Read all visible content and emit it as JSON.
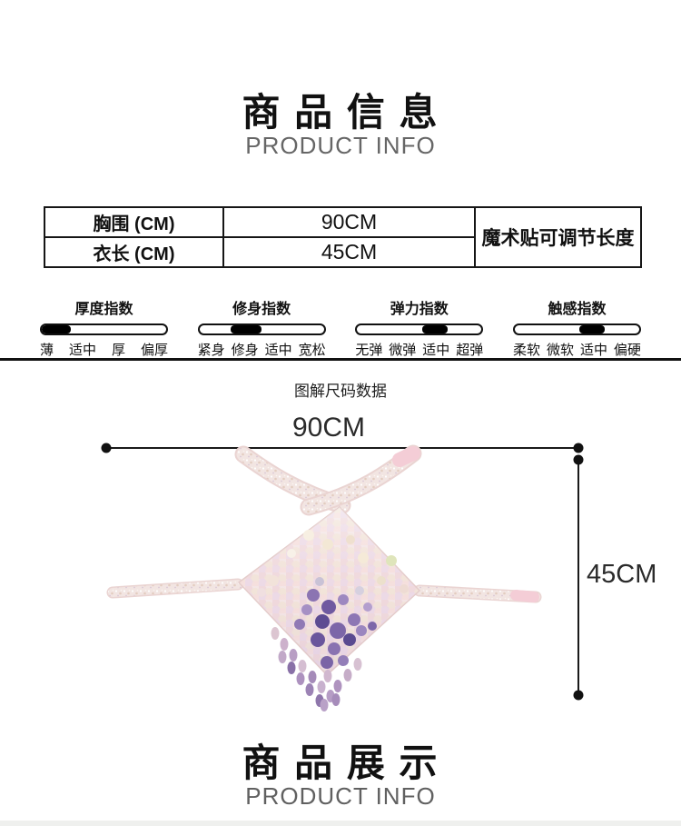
{
  "page": {
    "header": {
      "title": "商 品 信 息",
      "subtitle": "PRODUCT INFO"
    },
    "size_table": {
      "rows": [
        {
          "label": "胸围 (CM)",
          "value": "90CM"
        },
        {
          "label": "衣长 (CM)",
          "value": "45CM"
        }
      ],
      "note": "魔术贴可调节长度"
    },
    "indices": [
      {
        "title": "厚度指数",
        "labels": [
          "薄",
          "适中",
          "厚",
          "偏厚"
        ],
        "fill_start_pct": 0,
        "fill_end_pct": 23
      },
      {
        "title": "修身指数",
        "labels": [
          "紧身",
          "修身",
          "适中",
          "宽松"
        ],
        "fill_start_pct": 25,
        "fill_end_pct": 50
      },
      {
        "title": "弹力指数",
        "labels": [
          "无弹",
          "微弹",
          "适中",
          "超弹"
        ],
        "fill_start_pct": 52,
        "fill_end_pct": 73
      },
      {
        "title": "触感指数",
        "labels": [
          "柔软",
          "微软",
          "适中",
          "偏硬"
        ],
        "fill_start_pct": 52,
        "fill_end_pct": 72
      }
    ],
    "diagram": {
      "heading": "图解尺码数据",
      "width_label": "90CM",
      "length_label": "45CM"
    },
    "footer": {
      "title": "商 品 展 示",
      "subtitle": "PRODUCT INFO"
    },
    "colors": {
      "text": "#111111",
      "subtitle_gray": "#666666",
      "dimension_line": "#1a1a1a",
      "sequin_pink": "#efd9dc",
      "sequin_purple": "#6f5aa0",
      "strap_pink": "#f4cdd6",
      "bottom_strip": "#eff0ee"
    }
  }
}
